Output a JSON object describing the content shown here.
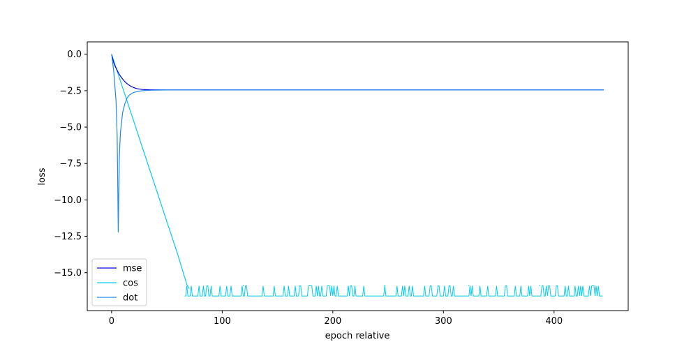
{
  "chart_data": {
    "type": "line",
    "title": "",
    "xlabel": "epoch relative",
    "ylabel": "loss",
    "xlim": [
      -22,
      467
    ],
    "ylim": [
      -17.6,
      0.85
    ],
    "xticks": [
      0,
      100,
      200,
      300,
      400
    ],
    "xtick_labels": [
      "0",
      "100",
      "200",
      "300",
      "400"
    ],
    "yticks": [
      0.0,
      -2.5,
      -5.0,
      -7.5,
      -10.0,
      -12.5,
      -15.0
    ],
    "ytick_labels": [
      "0.0",
      "−2.5",
      "−5.0",
      "−7.5",
      "−10.0",
      "−12.5",
      "−15.0"
    ],
    "grid": false,
    "legend_position": "lower-left",
    "series": [
      {
        "name": "mse",
        "color": "#0000dd",
        "x": [
          0,
          2,
          4,
          6,
          8,
          10,
          12,
          14,
          16,
          18,
          20,
          22,
          24,
          26,
          28,
          30,
          35,
          40,
          50,
          70,
          100,
          150,
          200,
          250,
          300,
          350,
          400,
          445
        ],
        "y": [
          0.0,
          -0.6,
          -0.95,
          -1.25,
          -1.5,
          -1.7,
          -1.88,
          -2.02,
          -2.13,
          -2.22,
          -2.29,
          -2.34,
          -2.38,
          -2.4,
          -2.42,
          -2.43,
          -2.44,
          -2.44,
          -2.45,
          -2.45,
          -2.45,
          -2.45,
          -2.45,
          -2.45,
          -2.45,
          -2.45,
          -2.45,
          -2.45
        ]
      },
      {
        "name": "cos",
        "color": "#00ccee",
        "x": [
          0,
          10,
          20,
          30,
          40,
          50,
          60,
          64,
          66,
          68,
          70
        ],
        "y": [
          0.0,
          -2.3,
          -4.6,
          -6.9,
          -9.2,
          -11.5,
          -13.8,
          -14.8,
          -15.3,
          -15.8,
          -16.1
        ],
        "spikes": {
          "x_start": 66,
          "x_end": 445,
          "low": -16.6,
          "high": -15.9,
          "markers_at": [
            119,
            247,
            323,
            387
          ]
        }
      },
      {
        "name": "dot",
        "color": "#1f88ee",
        "x": [
          0,
          2,
          4,
          5,
          5.5,
          6,
          6.5,
          7,
          8,
          10,
          12,
          14,
          16,
          18,
          20,
          24,
          28,
          32,
          36,
          40,
          50,
          70,
          100,
          150,
          200,
          250,
          300,
          350,
          400,
          445
        ],
        "y": [
          0.0,
          -1.2,
          -3.2,
          -5.5,
          -8.5,
          -12.2,
          -9.5,
          -7.0,
          -5.4,
          -4.0,
          -3.4,
          -3.0,
          -2.8,
          -2.7,
          -2.62,
          -2.55,
          -2.5,
          -2.48,
          -2.47,
          -2.46,
          -2.45,
          -2.45,
          -2.45,
          -2.45,
          -2.45,
          -2.45,
          -2.45,
          -2.45,
          -2.45,
          -2.45
        ]
      }
    ]
  }
}
